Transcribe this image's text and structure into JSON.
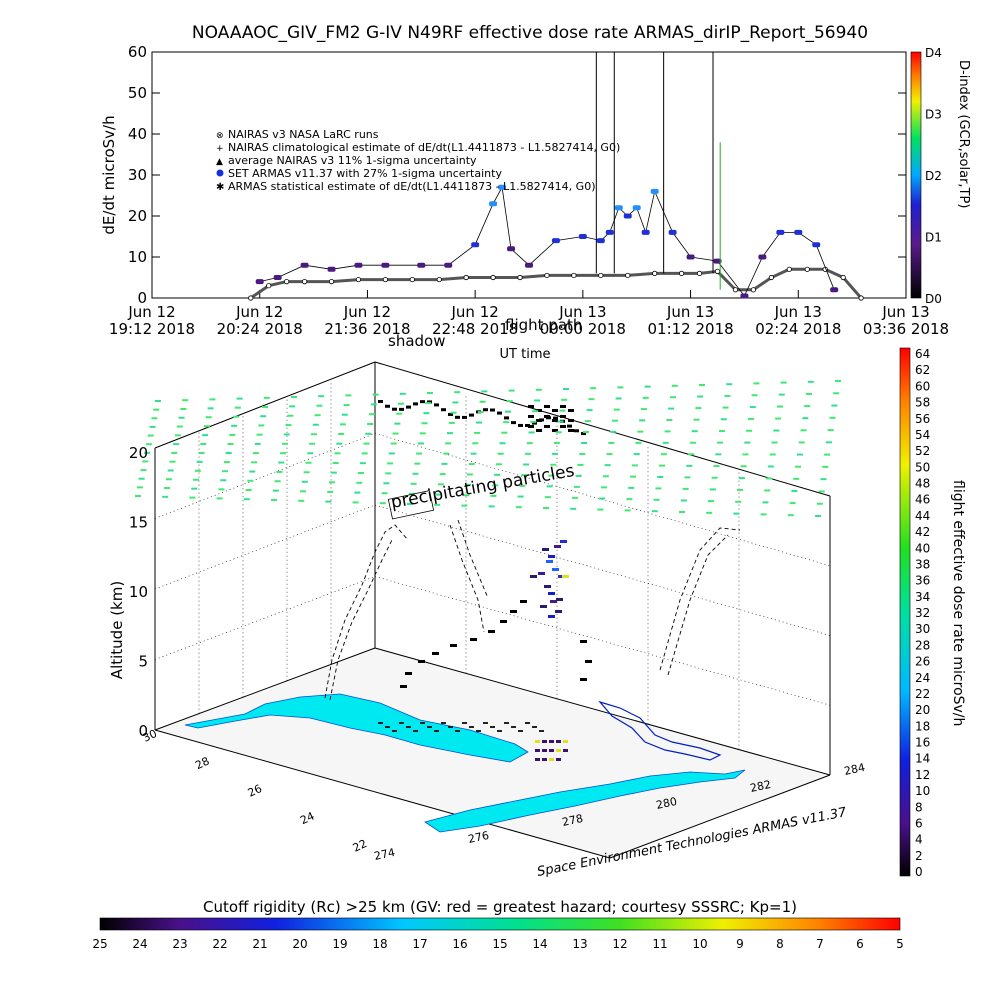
{
  "chart_data": [
    {
      "type": "line",
      "title": "NOAAAOC_GIV_FM2 G-IV    N49RF   effective dose rate ARMAS_dirIP_Report_56940",
      "ylabel": "dE/dt microSv/h",
      "xlabel": "UT time",
      "ylim": [
        0,
        60
      ],
      "yticks": [
        "0",
        "10",
        "20",
        "30",
        "40",
        "50",
        "60"
      ],
      "xticks": [
        {
          "line1": "Jun 12",
          "line2": "19:12 2018"
        },
        {
          "line1": "Jun 12",
          "line2": "20:24 2018"
        },
        {
          "line1": "Jun 12",
          "line2": "21:36 2018"
        },
        {
          "line1": "Jun 12",
          "line2": "22:48 2018"
        },
        {
          "line1": "Jun 13",
          "line2": "00:00 2018"
        },
        {
          "line1": "Jun 13",
          "line2": "01:12 2018"
        },
        {
          "line1": "Jun 13",
          "line2": "02:24 2018"
        },
        {
          "line1": "Jun 13",
          "line2": "03:36 2018"
        }
      ],
      "x_hours": [
        0,
        1.2,
        2.4,
        3.6,
        4.8,
        6.0,
        7.2,
        8.4
      ],
      "legend": [
        "NAIRAS v3 NASA LaRC runs",
        "NAIRAS climatological estimate of dE/dt(L1.4411873 - L1.5827414, G0)",
        "average NAIRAS v3 11% 1-sigma uncertainty",
        "SET ARMAS v11.37 with 27% 1-sigma uncertainty",
        "ARMAS statistical estimate of dE/dt(L1.4411873 - L1.5827414, G0)"
      ],
      "overlay_labels": {
        "a": "shadow",
        "b": "flight path"
      },
      "series": [
        {
          "name": "NAIRAS v3 NASA LaRC runs",
          "x": [
            1.1,
            1.3,
            1.5,
            1.7,
            2.0,
            2.3,
            2.6,
            2.9,
            3.2,
            3.5,
            3.8,
            4.1,
            4.4,
            4.7,
            5.0,
            5.3,
            5.6,
            5.9,
            6.1,
            6.3,
            6.5,
            6.7,
            6.9,
            7.1,
            7.3,
            7.5,
            7.7,
            7.9
          ],
          "y": [
            0,
            3,
            4,
            4,
            4,
            4.5,
            4.5,
            4.5,
            4.5,
            5,
            5,
            5,
            5.5,
            5.5,
            5.5,
            5.5,
            6,
            6,
            6,
            6.5,
            2,
            2,
            5,
            7,
            7,
            7,
            5,
            0
          ]
        },
        {
          "name": "SET ARMAS v11.37 with 27% 1-sigma uncertainty",
          "x": [
            1.2,
            1.4,
            1.7,
            2.0,
            2.3,
            2.6,
            3.0,
            3.3,
            3.6,
            3.8,
            3.9,
            4.0,
            4.2,
            4.5,
            4.8,
            5.0,
            5.1,
            5.2,
            5.3,
            5.4,
            5.5,
            5.6,
            5.8,
            6.0,
            6.3,
            6.6,
            6.8,
            7.0,
            7.2,
            7.4,
            7.6
          ],
          "y": [
            4,
            5,
            8,
            7,
            8,
            8,
            8,
            8,
            13,
            23,
            27,
            12,
            8,
            14,
            15,
            14,
            16,
            22,
            20,
            22,
            16,
            26,
            16,
            10,
            9,
            0.5,
            10,
            16,
            16,
            13,
            2
          ]
        }
      ],
      "right_colorbar": {
        "label": "D-index (GCR,solar,TP)",
        "ticks": [
          "D0",
          "D1",
          "D2",
          "D3",
          "D4"
        ],
        "values": [
          0,
          1,
          2,
          3,
          4
        ]
      }
    },
    {
      "type": "scatter",
      "zlabel": "Altitude (km)",
      "zticks": [
        "0",
        "5",
        "10",
        "15",
        "20"
      ],
      "lat_ticks": [
        "30",
        "28",
        "26",
        "24",
        "22"
      ],
      "lon_ticks": [
        "274",
        "276",
        "278",
        "280",
        "282",
        "284"
      ],
      "annotation": "precipitating particles",
      "credit": "Space Environment Technologies ARMAS v11.37",
      "right_colorbar": {
        "label": "flight effective dose rate microSv/h",
        "ticks": [
          "64",
          "62",
          "60",
          "58",
          "56",
          "54",
          "52",
          "50",
          "48",
          "46",
          "44",
          "42",
          "40",
          "38",
          "36",
          "34",
          "32",
          "30",
          "28",
          "26",
          "24",
          "22",
          "20",
          "18",
          "16",
          "14",
          "12",
          "10",
          "8",
          "6",
          "4",
          "2",
          "0"
        ]
      },
      "bottom_colorbar": {
        "label": "Cutoff rigidity (Rc) >25 km (GV: red = greatest hazard; courtesy SSSRC; Kp=1)",
        "ticks": [
          "25",
          "24",
          "23",
          "22",
          "21",
          "20",
          "19",
          "18",
          "17",
          "16",
          "15",
          "14",
          "13",
          "12",
          "11",
          "10",
          "9",
          "8",
          "7",
          "6",
          "5"
        ]
      }
    }
  ]
}
